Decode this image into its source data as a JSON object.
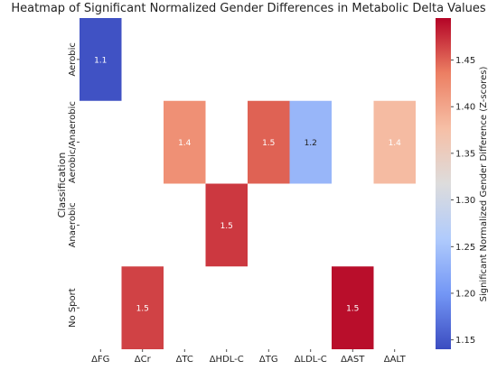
{
  "chart_data": {
    "type": "heatmap",
    "title": "Heatmap of Significant Normalized Gender Differences in Metabolic Delta Values",
    "xlabel": "",
    "ylabel": "Classification",
    "x_categories": [
      "ΔFG",
      "ΔCr",
      "ΔTC",
      "ΔHDL-C",
      "ΔTG",
      "ΔLDL-C",
      "ΔAST",
      "ΔALT"
    ],
    "y_categories": [
      "Aerobic",
      "Aerobic/Anaerobic",
      "Anaerobic",
      "No Sport"
    ],
    "cells": [
      {
        "row": "Aerobic",
        "col": "ΔFG",
        "value": 1.145,
        "label": "1.1"
      },
      {
        "row": "Aerobic/Anaerobic",
        "col": "ΔTC",
        "value": 1.42,
        "label": "1.4"
      },
      {
        "row": "Aerobic/Anaerobic",
        "col": "ΔTG",
        "value": 1.45,
        "label": "1.5"
      },
      {
        "row": "Aerobic/Anaerobic",
        "col": "ΔLDL-C",
        "value": 1.235,
        "label": "1.2"
      },
      {
        "row": "Aerobic/Anaerobic",
        "col": "ΔALT",
        "value": 1.38,
        "label": "1.4"
      },
      {
        "row": "Anaerobic",
        "col": "ΔHDL-C",
        "value": 1.47,
        "label": "1.5"
      },
      {
        "row": "No Sport",
        "col": "ΔCr",
        "value": 1.465,
        "label": "1.5"
      },
      {
        "row": "No Sport",
        "col": "ΔAST",
        "value": 1.49,
        "label": "1.5"
      }
    ],
    "colorbar": {
      "label": "Significant Normalized Gender Difference (Z-scores)",
      "min": 1.14,
      "max": 1.495,
      "ticks": [
        "1.15",
        "1.20",
        "1.25",
        "1.30",
        "1.35",
        "1.40",
        "1.45"
      ],
      "colormap": "coolwarm",
      "colors": [
        "#3b4cc0",
        "#7396f5",
        "#b0cbfc",
        "#dddcdc",
        "#f6bfa6",
        "#ec7f63",
        "#b40426"
      ]
    },
    "grid": false
  }
}
